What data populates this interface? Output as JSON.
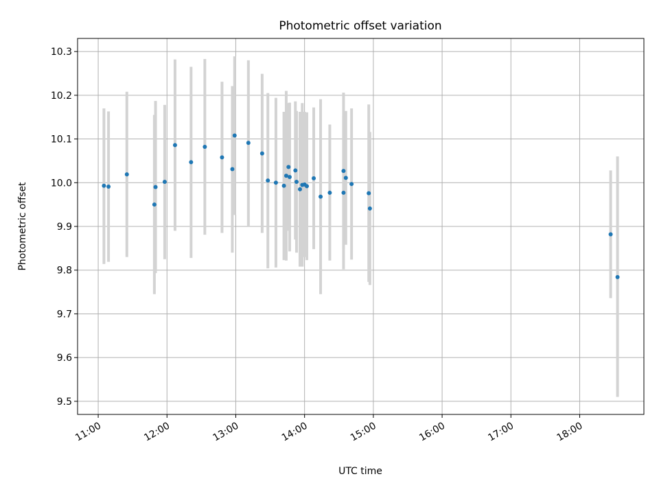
{
  "chart_data": {
    "type": "scatter",
    "title": "Photometric offset variation",
    "xlabel": "UTC time",
    "ylabel": "Photometric offset",
    "xlim": [
      "10:42",
      "18:56"
    ],
    "ylim": [
      9.47,
      10.33
    ],
    "xticks": [
      "11:00",
      "12:00",
      "13:00",
      "14:00",
      "15:00",
      "16:00",
      "17:00",
      "18:00"
    ],
    "yticks": [
      9.5,
      9.6,
      9.7,
      9.8,
      9.9,
      10.0,
      10.1,
      10.2,
      10.3
    ],
    "ytick_labels": [
      "9.5",
      "9.6",
      "9.7",
      "9.8",
      "9.9",
      "10.0",
      "10.1",
      "10.2",
      "10.3"
    ],
    "grid": true,
    "legend": "none",
    "colors": {
      "point": "#1f77b4",
      "errorbar": "#d3d3d3",
      "grid": "#b0b0b0",
      "frame": "#000000"
    },
    "points": [
      {
        "x": "11:05",
        "y": 9.993,
        "ymin": 9.814,
        "ymax": 10.17
      },
      {
        "x": "11:09",
        "y": 9.991,
        "ymin": 9.819,
        "ymax": 10.163
      },
      {
        "x": "11:25",
        "y": 10.019,
        "ymin": 9.83,
        "ymax": 10.208
      },
      {
        "x": "11:49",
        "y": 9.95,
        "ymin": 9.745,
        "ymax": 10.155
      },
      {
        "x": "11:50",
        "y": 9.99,
        "ymin": 9.793,
        "ymax": 10.187
      },
      {
        "x": "11:58",
        "y": 10.002,
        "ymin": 9.825,
        "ymax": 10.178
      },
      {
        "x": "12:07",
        "y": 10.086,
        "ymin": 9.89,
        "ymax": 10.282
      },
      {
        "x": "12:21",
        "y": 10.047,
        "ymin": 9.828,
        "ymax": 10.265
      },
      {
        "x": "12:33",
        "y": 10.082,
        "ymin": 9.881,
        "ymax": 10.283
      },
      {
        "x": "12:48",
        "y": 10.058,
        "ymin": 9.885,
        "ymax": 10.231
      },
      {
        "x": "12:57",
        "y": 10.031,
        "ymin": 9.84,
        "ymax": 10.221
      },
      {
        "x": "12:59",
        "y": 10.108,
        "ymin": 9.926,
        "ymax": 10.289
      },
      {
        "x": "13:11",
        "y": 10.091,
        "ymin": 9.9,
        "ymax": 10.28
      },
      {
        "x": "13:23",
        "y": 10.067,
        "ymin": 9.885,
        "ymax": 10.249
      },
      {
        "x": "13:28",
        "y": 10.005,
        "ymin": 9.804,
        "ymax": 10.205
      },
      {
        "x": "13:35",
        "y": 10.0,
        "ymin": 9.806,
        "ymax": 10.194
      },
      {
        "x": "13:42",
        "y": 9.993,
        "ymin": 9.823,
        "ymax": 10.162
      },
      {
        "x": "13:44",
        "y": 10.016,
        "ymin": 9.822,
        "ymax": 10.21
      },
      {
        "x": "13:46",
        "y": 10.036,
        "ymin": 9.89,
        "ymax": 10.182
      },
      {
        "x": "13:47",
        "y": 10.013,
        "ymin": 9.843,
        "ymax": 10.183
      },
      {
        "x": "13:52",
        "y": 10.028,
        "ymin": 9.87,
        "ymax": 10.186
      },
      {
        "x": "13:53",
        "y": 10.002,
        "ymin": 9.84,
        "ymax": 10.164
      },
      {
        "x": "13:56",
        "y": 9.985,
        "ymin": 9.808,
        "ymax": 10.162
      },
      {
        "x": "13:58",
        "y": 9.995,
        "ymin": 9.808,
        "ymax": 10.182
      },
      {
        "x": "14:00",
        "y": 9.996,
        "ymin": 9.83,
        "ymax": 10.162
      },
      {
        "x": "14:02",
        "y": 9.992,
        "ymin": 9.823,
        "ymax": 10.161
      },
      {
        "x": "14:08",
        "y": 10.01,
        "ymin": 9.848,
        "ymax": 10.172
      },
      {
        "x": "14:14",
        "y": 9.968,
        "ymin": 9.745,
        "ymax": 10.191
      },
      {
        "x": "14:22",
        "y": 9.977,
        "ymin": 9.822,
        "ymax": 10.133
      },
      {
        "x": "14:34",
        "y": 10.027,
        "ymin": 9.848,
        "ymax": 10.206
      },
      {
        "x": "14:34",
        "y": 9.977,
        "ymin": 9.802,
        "ymax": 10.152
      },
      {
        "x": "14:36",
        "y": 10.011,
        "ymin": 9.858,
        "ymax": 10.164
      },
      {
        "x": "14:41",
        "y": 9.997,
        "ymin": 9.824,
        "ymax": 10.17
      },
      {
        "x": "14:56",
        "y": 9.976,
        "ymin": 9.773,
        "ymax": 10.179
      },
      {
        "x": "14:57",
        "y": 9.941,
        "ymin": 9.766,
        "ymax": 10.116
      },
      {
        "x": "18:27",
        "y": 9.882,
        "ymin": 9.736,
        "ymax": 10.028
      },
      {
        "x": "18:33",
        "y": 9.784,
        "ymin": 9.51,
        "ymax": 10.06
      }
    ]
  }
}
